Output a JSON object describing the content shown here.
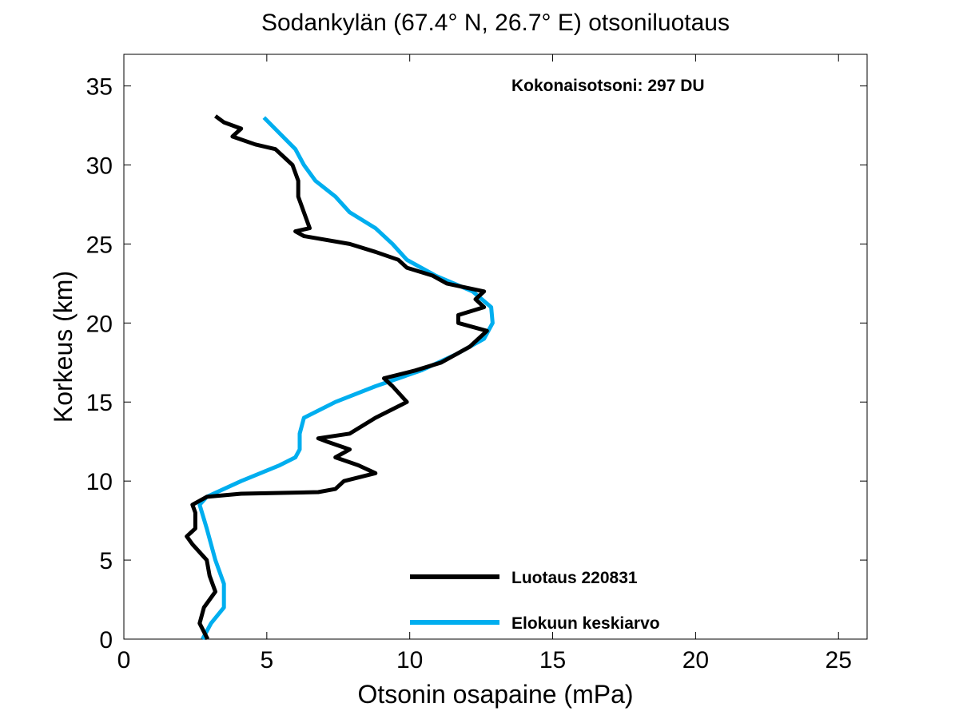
{
  "chart_data": {
    "type": "line",
    "title": "Sodankylän (67.4° N, 26.7° E)  otsoniluotaus",
    "xlabel": "Otsonin osapaine (mPa)",
    "ylabel": "Korkeus (km)",
    "xlim": [
      0,
      26
    ],
    "ylim": [
      0,
      37
    ],
    "xticks": [
      0,
      5,
      10,
      15,
      20,
      25
    ],
    "yticks": [
      0,
      5,
      10,
      15,
      20,
      25,
      30,
      35
    ],
    "grid": false,
    "legend_position": "bottom-right",
    "annotation": "Kokonaisotsoni: 297 DU",
    "series": [
      {
        "name": "Luotaus 220831",
        "color": "#000000",
        "x": [
          2.93,
          2.65,
          2.8,
          3.2,
          3.0,
          2.9,
          2.4,
          2.2,
          2.5,
          2.5,
          2.4,
          2.9,
          4.1,
          6.8,
          7.4,
          7.7,
          8.8,
          8.2,
          7.4,
          7.9,
          7.1,
          6.8,
          7.9,
          8.8,
          9.9,
          9.4,
          9.1,
          10.2,
          11.1,
          11.6,
          12.1,
          12.7,
          11.7,
          11.7,
          12.6,
          12.3,
          12.6,
          11.3,
          10.8,
          9.9,
          9.6,
          8.8,
          7.9,
          6.3,
          6.0,
          6.5,
          6.3,
          6.1,
          6.1,
          5.9,
          5.3,
          4.6,
          3.8,
          4.1,
          3.5,
          3.2
        ],
        "y": [
          0,
          1,
          2,
          3,
          4,
          5,
          6,
          6.5,
          7,
          8,
          8.5,
          9,
          9.2,
          9.3,
          9.5,
          10,
          10.5,
          11,
          11.5,
          12,
          12.5,
          12.7,
          13,
          14,
          15,
          16,
          16.5,
          17,
          17.5,
          18,
          18.5,
          19.5,
          20,
          20.5,
          21,
          21.5,
          22,
          22.5,
          23,
          23.5,
          24,
          24.5,
          25,
          25.5,
          25.8,
          26,
          27,
          28,
          29,
          30,
          31,
          31.3,
          31.8,
          32.3,
          32.7,
          33.1
        ]
      },
      {
        "name": "Elokuun keskiarvo",
        "color": "#00AEEF",
        "x": [
          2.75,
          3.05,
          3.5,
          3.5,
          3.2,
          2.9,
          2.65,
          2.9,
          4.1,
          5.45,
          6.0,
          6.15,
          6.15,
          6.3,
          7.4,
          8.8,
          10.4,
          11.6,
          12.6,
          12.9,
          12.85,
          12.2,
          10.9,
          9.9,
          9.4,
          8.8,
          7.9,
          7.4,
          6.7,
          6.3,
          6.0,
          5.45,
          4.9
        ],
        "y": [
          0,
          1,
          2,
          3.5,
          5,
          7,
          8.5,
          9,
          10,
          11,
          11.5,
          12,
          13,
          14,
          15,
          16,
          17,
          18,
          19,
          20,
          21,
          22,
          23,
          24,
          25,
          26,
          27,
          28,
          29,
          30,
          31,
          32,
          33
        ]
      }
    ]
  }
}
